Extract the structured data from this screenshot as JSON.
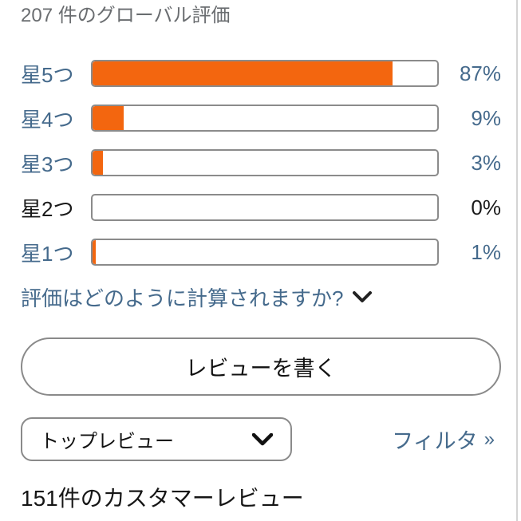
{
  "header": {
    "title": "207 件のグローバル評価"
  },
  "ratings": {
    "rows": [
      {
        "label": "星5つ",
        "percent": "87%",
        "value": 87,
        "linked": true
      },
      {
        "label": "星4つ",
        "percent": "9%",
        "value": 9,
        "linked": true
      },
      {
        "label": "星3つ",
        "percent": "3%",
        "value": 3,
        "linked": true
      },
      {
        "label": "星2つ",
        "percent": "0%",
        "value": 0,
        "linked": false
      },
      {
        "label": "星1つ",
        "percent": "1%",
        "value": 1,
        "linked": true
      }
    ],
    "how_calculated_link": "評価はどのように計算されますか?"
  },
  "actions": {
    "write_review_label": "レビューを書く"
  },
  "controls": {
    "sort_selected": "トップレビュー",
    "filter_label": "フィルタ",
    "filter_arrow": "»"
  },
  "reviews": {
    "heading": "151件のカスタマーレビュー"
  },
  "colors": {
    "link_blue": "#456a8c",
    "bar_fill_orange": "#f3660f",
    "bar_border_gray": "#8b8b8b",
    "title_gray": "#6a6d70",
    "dark_text": "#1a1a1a"
  },
  "chart_data": {
    "type": "bar",
    "title": "207 件のグローバル評価",
    "categories": [
      "星5つ",
      "星4つ",
      "星3つ",
      "星2つ",
      "星1つ"
    ],
    "values": [
      87,
      9,
      3,
      0,
      1
    ],
    "value_unit": "%",
    "xlim": [
      0,
      100
    ],
    "orientation": "horizontal"
  }
}
